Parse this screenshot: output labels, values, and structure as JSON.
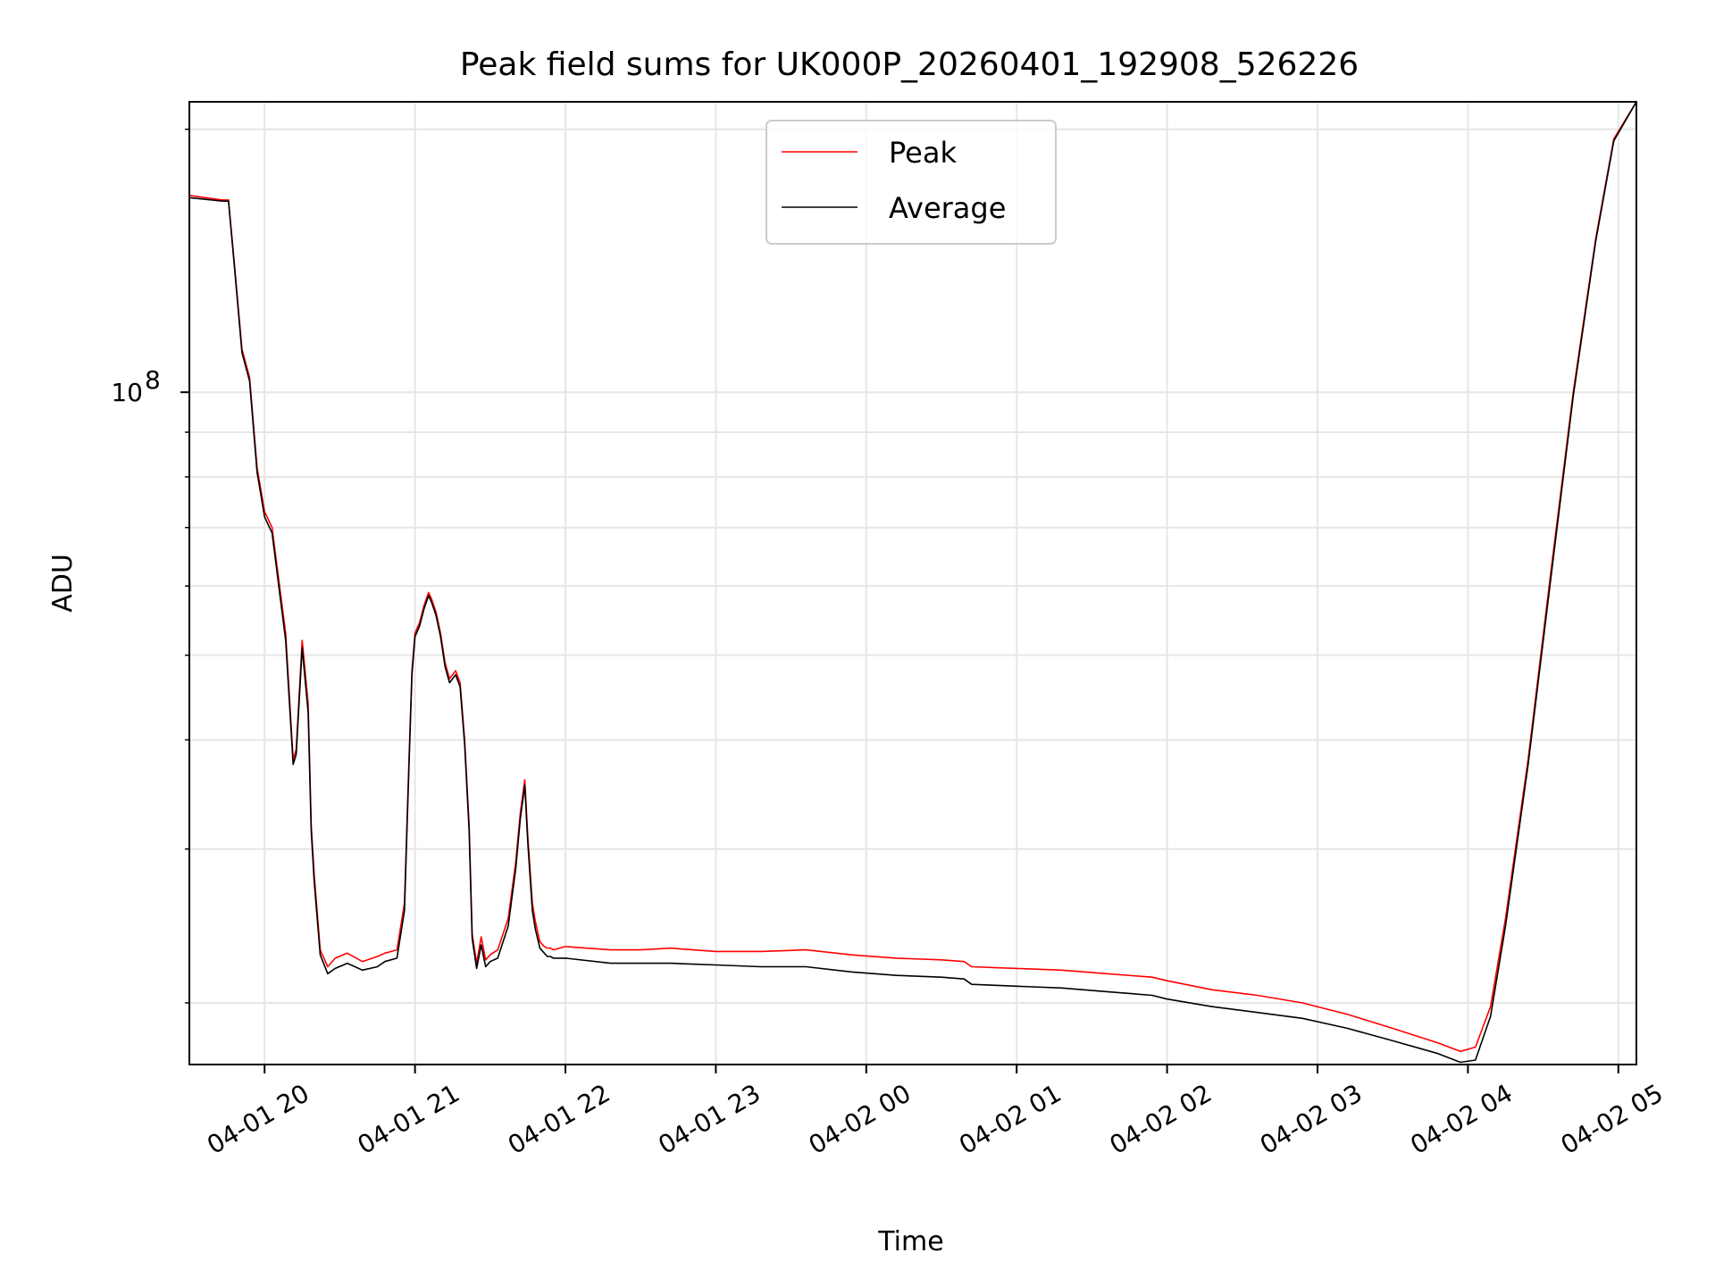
{
  "chart_data": {
    "type": "line",
    "title": "Peak field sums for UK000P_20260401_192908_526226",
    "xlabel": "Time",
    "ylabel": "ADU",
    "yscale": "log",
    "ylim": [
      17000000,
      215000000
    ],
    "xlim": [
      19.5,
      29.12
    ],
    "grid": true,
    "legend_position": "top-center",
    "x_ticks": [
      {
        "value": 20,
        "label": "04-01 20"
      },
      {
        "value": 21,
        "label": "04-01 21"
      },
      {
        "value": 22,
        "label": "04-01 22"
      },
      {
        "value": 23,
        "label": "04-01 23"
      },
      {
        "value": 24,
        "label": "04-02 00"
      },
      {
        "value": 25,
        "label": "04-02 01"
      },
      {
        "value": 26,
        "label": "04-02 02"
      },
      {
        "value": 27,
        "label": "04-02 03"
      },
      {
        "value": 28,
        "label": "04-02 04"
      },
      {
        "value": 29,
        "label": "04-02 05"
      }
    ],
    "y_major_tick": {
      "value": 100000000,
      "base": "10",
      "exponent": "8"
    },
    "y_minor_ticks": [
      20000000,
      30000000,
      40000000,
      50000000,
      60000000,
      70000000,
      80000000,
      90000000,
      200000000
    ],
    "series": [
      {
        "name": "Peak",
        "color": "#ff0000",
        "x": [
          19.5,
          19.72,
          19.76,
          19.8,
          19.85,
          19.9,
          19.95,
          20.0,
          20.05,
          20.1,
          20.14,
          20.19,
          20.21,
          20.25,
          20.29,
          20.31,
          20.33,
          20.37,
          20.42,
          20.47,
          20.55,
          20.65,
          20.75,
          20.8,
          20.88,
          20.93,
          20.96,
          20.98,
          21.0,
          21.03,
          21.06,
          21.09,
          21.11,
          21.14,
          21.17,
          21.2,
          21.23,
          21.27,
          21.3,
          21.33,
          21.36,
          21.38,
          21.41,
          21.44,
          21.47,
          21.5,
          21.55,
          21.62,
          21.67,
          21.7,
          21.73,
          21.75,
          21.78,
          21.8,
          21.83,
          21.86,
          21.88,
          21.9,
          21.92,
          22.0,
          22.3,
          22.5,
          22.7,
          23.0,
          23.3,
          23.6,
          23.9,
          24.2,
          24.5,
          24.65,
          24.7,
          25.0,
          25.3,
          25.6,
          25.9,
          26.0,
          26.3,
          26.6,
          26.9,
          27.2,
          27.5,
          27.8,
          27.95,
          28.05,
          28.15,
          28.25,
          28.4,
          28.55,
          28.7,
          28.85,
          28.97,
          29.12
        ],
        "values": [
          168000000,
          166000000,
          166000000,
          140000000,
          112000000,
          104000000,
          82000000,
          73000000,
          70000000,
          60000000,
          53000000,
          38000000,
          39000000,
          52000000,
          44000000,
          32000000,
          28000000,
          23000000,
          22000000,
          22500000,
          22800000,
          22300000,
          22600000,
          22800000,
          23000000,
          26000000,
          38000000,
          48000000,
          53000000,
          54500000,
          57000000,
          59000000,
          58000000,
          56000000,
          53000000,
          49000000,
          47000000,
          48000000,
          46500000,
          40000000,
          32000000,
          24000000,
          22200000,
          23800000,
          22400000,
          22700000,
          23000000,
          25000000,
          29000000,
          33000000,
          36000000,
          31000000,
          26000000,
          24800000,
          23500000,
          23200000,
          23100000,
          23100000,
          23000000,
          23200000,
          23000000,
          23000000,
          23100000,
          22900000,
          22900000,
          23000000,
          22700000,
          22500000,
          22400000,
          22300000,
          22000000,
          21900000,
          21800000,
          21600000,
          21400000,
          21200000,
          20700000,
          20400000,
          20000000,
          19400000,
          18700000,
          18000000,
          17600000,
          17800000,
          19800000,
          25000000,
          38000000,
          62000000,
          100000000,
          150000000,
          195000000,
          215000000
        ]
      },
      {
        "name": "Average",
        "color": "#000000",
        "x": [
          19.5,
          19.72,
          19.76,
          19.8,
          19.85,
          19.9,
          19.95,
          20.0,
          20.05,
          20.1,
          20.14,
          20.19,
          20.21,
          20.25,
          20.29,
          20.31,
          20.33,
          20.37,
          20.42,
          20.47,
          20.55,
          20.65,
          20.75,
          20.8,
          20.88,
          20.93,
          20.96,
          20.98,
          21.0,
          21.03,
          21.06,
          21.09,
          21.11,
          21.14,
          21.17,
          21.2,
          21.23,
          21.27,
          21.3,
          21.33,
          21.36,
          21.38,
          21.41,
          21.44,
          21.47,
          21.5,
          21.55,
          21.62,
          21.67,
          21.7,
          21.73,
          21.75,
          21.78,
          21.8,
          21.83,
          21.86,
          21.88,
          21.9,
          21.92,
          22.0,
          22.3,
          22.5,
          22.7,
          23.0,
          23.3,
          23.6,
          23.9,
          24.2,
          24.5,
          24.65,
          24.7,
          25.0,
          25.3,
          25.6,
          25.9,
          26.0,
          26.3,
          26.6,
          26.9,
          27.2,
          27.5,
          27.8,
          27.95,
          28.05,
          28.15,
          28.25,
          28.4,
          28.55,
          28.7,
          28.85,
          28.97,
          29.12
        ],
        "values": [
          167000000,
          165500000,
          165500000,
          139000000,
          111000000,
          103000000,
          81000000,
          72000000,
          69000000,
          59000000,
          52000000,
          37500000,
          38500000,
          51000000,
          43000000,
          31500000,
          27500000,
          22700000,
          21600000,
          21900000,
          22200000,
          21800000,
          22000000,
          22300000,
          22500000,
          25500000,
          37500000,
          47500000,
          52500000,
          54000000,
          56500000,
          58500000,
          57500000,
          55500000,
          52500000,
          48500000,
          46500000,
          47500000,
          46000000,
          39500000,
          31500000,
          23700000,
          21900000,
          23300000,
          22000000,
          22300000,
          22500000,
          24500000,
          28500000,
          32500000,
          35500000,
          30500000,
          25500000,
          24300000,
          23100000,
          22800000,
          22600000,
          22600000,
          22500000,
          22500000,
          22200000,
          22200000,
          22200000,
          22100000,
          22000000,
          22000000,
          21700000,
          21500000,
          21400000,
          21300000,
          21000000,
          20900000,
          20800000,
          20600000,
          20400000,
          20200000,
          19800000,
          19500000,
          19200000,
          18700000,
          18100000,
          17500000,
          17100000,
          17200000,
          19300000,
          24500000,
          37500000,
          61000000,
          99000000,
          149000000,
          194000000,
          215000000
        ]
      }
    ]
  }
}
